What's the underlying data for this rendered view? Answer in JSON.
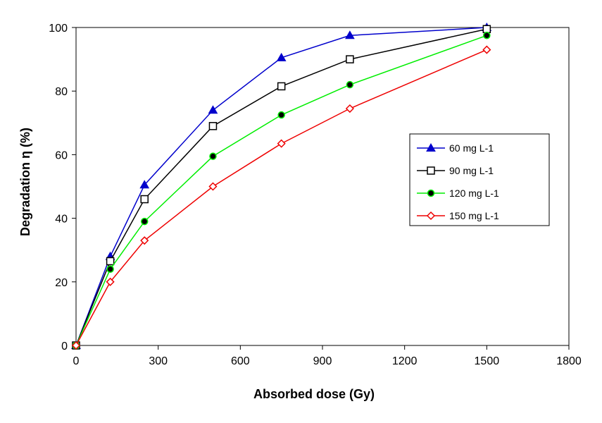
{
  "chart_data": {
    "type": "line",
    "title": "",
    "xlabel": "Absorbed dose (Gy)",
    "ylabel": "Degradation η (%)",
    "xlim": [
      0,
      1800
    ],
    "ylim": [
      0,
      100
    ],
    "x_ticks": [
      0,
      300,
      600,
      900,
      1200,
      1500,
      1800
    ],
    "y_ticks": [
      0,
      20,
      40,
      60,
      80,
      100
    ],
    "grid": false,
    "legend_position": "right",
    "x": [
      0,
      125,
      250,
      500,
      750,
      1000,
      1500
    ],
    "series": [
      {
        "name": "60 mg L-1",
        "color": "#0000cc",
        "marker": "triangle",
        "values": [
          0,
          28,
          50.5,
          74,
          90.5,
          97.5,
          100
        ]
      },
      {
        "name": "90 mg L-1",
        "color": "#000000",
        "marker": "square-open",
        "values": [
          0,
          26.5,
          46,
          69,
          81.5,
          90,
          99.5
        ]
      },
      {
        "name": "120 mg L-1",
        "color": "#00ee00",
        "marker": "circle-filled",
        "values": [
          0,
          24,
          39,
          59.5,
          72.5,
          82,
          97.5
        ]
      },
      {
        "name": "150 mg L-1",
        "color": "#ee0000",
        "marker": "diamond-open",
        "values": [
          0,
          20,
          33,
          50,
          63.5,
          74.5,
          93
        ]
      }
    ]
  }
}
